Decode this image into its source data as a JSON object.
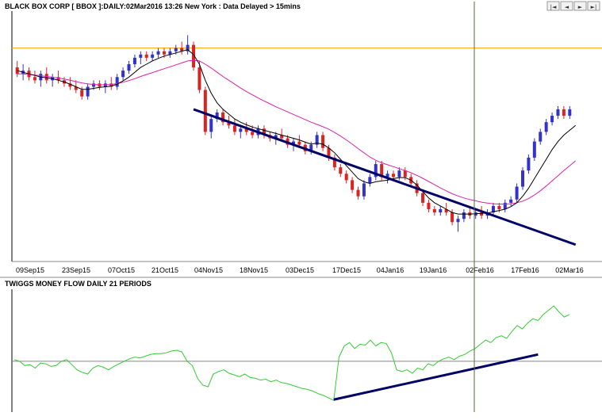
{
  "chart_data": [
    {
      "type": "candlestick",
      "title": "BLACK BOX CORP [ BBOX ]:DAILY:02Mar2016 13:26 New York : Data Delayed > 15mins",
      "x_tick_labels": [
        "09Sep15",
        "23Sep15",
        "07Oct15",
        "21Oct15",
        "04Nov15",
        "18Nov15",
        "03Dec15",
        "17Dec15",
        "04Jan16",
        "19Jan16",
        "02Feb16",
        "17Feb16",
        "02Mar16"
      ],
      "candles": [
        {
          "o": 16.4,
          "h": 16.6,
          "l": 16.1,
          "c": 16.2
        },
        {
          "o": 16.2,
          "h": 16.5,
          "l": 16.0,
          "c": 16.3
        },
        {
          "o": 16.3,
          "h": 16.4,
          "l": 16.0,
          "c": 16.1
        },
        {
          "o": 16.1,
          "h": 16.3,
          "l": 15.9,
          "c": 16.0
        },
        {
          "o": 16.0,
          "h": 16.3,
          "l": 15.8,
          "c": 16.2
        },
        {
          "o": 16.2,
          "h": 16.4,
          "l": 15.9,
          "c": 16.0
        },
        {
          "o": 16.0,
          "h": 16.2,
          "l": 15.8,
          "c": 16.1
        },
        {
          "o": 16.1,
          "h": 16.3,
          "l": 15.9,
          "c": 16.0
        },
        {
          "o": 16.0,
          "h": 16.1,
          "l": 15.8,
          "c": 15.9
        },
        {
          "o": 15.9,
          "h": 16.1,
          "l": 15.7,
          "c": 15.8
        },
        {
          "o": 15.8,
          "h": 16.0,
          "l": 15.6,
          "c": 15.7
        },
        {
          "o": 15.7,
          "h": 15.8,
          "l": 15.4,
          "c": 15.5
        },
        {
          "o": 15.5,
          "h": 15.9,
          "l": 15.4,
          "c": 15.8
        },
        {
          "o": 15.8,
          "h": 16.0,
          "l": 15.7,
          "c": 15.9
        },
        {
          "o": 15.9,
          "h": 16.0,
          "l": 15.7,
          "c": 15.8
        },
        {
          "o": 15.8,
          "h": 16.0,
          "l": 15.6,
          "c": 15.9
        },
        {
          "o": 15.9,
          "h": 16.1,
          "l": 15.7,
          "c": 15.8
        },
        {
          "o": 15.8,
          "h": 16.2,
          "l": 15.7,
          "c": 16.1
        },
        {
          "o": 16.1,
          "h": 16.4,
          "l": 16.0,
          "c": 16.3
        },
        {
          "o": 16.3,
          "h": 16.6,
          "l": 16.2,
          "c": 16.5
        },
        {
          "o": 16.5,
          "h": 16.8,
          "l": 16.4,
          "c": 16.7
        },
        {
          "o": 16.7,
          "h": 16.9,
          "l": 16.5,
          "c": 16.8
        },
        {
          "o": 16.8,
          "h": 16.9,
          "l": 16.6,
          "c": 16.7
        },
        {
          "o": 16.7,
          "h": 16.9,
          "l": 16.6,
          "c": 16.8
        },
        {
          "o": 16.8,
          "h": 17.0,
          "l": 16.7,
          "c": 16.9
        },
        {
          "o": 16.9,
          "h": 17.0,
          "l": 16.7,
          "c": 16.8
        },
        {
          "o": 16.8,
          "h": 17.0,
          "l": 16.7,
          "c": 16.9
        },
        {
          "o": 16.9,
          "h": 17.1,
          "l": 16.8,
          "c": 17.0
        },
        {
          "o": 17.0,
          "h": 17.2,
          "l": 16.8,
          "c": 16.9
        },
        {
          "o": 16.9,
          "h": 17.4,
          "l": 16.8,
          "c": 17.1
        },
        {
          "o": 17.1,
          "h": 17.2,
          "l": 16.3,
          "c": 16.4
        },
        {
          "o": 16.4,
          "h": 16.6,
          "l": 15.6,
          "c": 15.7
        },
        {
          "o": 15.7,
          "h": 15.8,
          "l": 14.3,
          "c": 14.4
        },
        {
          "o": 14.4,
          "h": 14.9,
          "l": 14.2,
          "c": 14.8
        },
        {
          "o": 14.8,
          "h": 15.1,
          "l": 14.7,
          "c": 15.0
        },
        {
          "o": 15.0,
          "h": 15.1,
          "l": 14.6,
          "c": 14.7
        },
        {
          "o": 14.7,
          "h": 14.9,
          "l": 14.5,
          "c": 14.6
        },
        {
          "o": 14.6,
          "h": 14.8,
          "l": 14.3,
          "c": 14.4
        },
        {
          "o": 14.4,
          "h": 14.6,
          "l": 14.2,
          "c": 14.5
        },
        {
          "o": 14.5,
          "h": 14.7,
          "l": 14.3,
          "c": 14.4
        },
        {
          "o": 14.4,
          "h": 14.6,
          "l": 14.2,
          "c": 14.3
        },
        {
          "o": 14.3,
          "h": 14.6,
          "l": 14.2,
          "c": 14.5
        },
        {
          "o": 14.5,
          "h": 14.6,
          "l": 14.2,
          "c": 14.3
        },
        {
          "o": 14.3,
          "h": 14.4,
          "l": 14.1,
          "c": 14.2
        },
        {
          "o": 14.2,
          "h": 14.4,
          "l": 14.0,
          "c": 14.3
        },
        {
          "o": 14.3,
          "h": 14.5,
          "l": 14.1,
          "c": 14.2
        },
        {
          "o": 14.2,
          "h": 14.3,
          "l": 13.9,
          "c": 14.0
        },
        {
          "o": 14.0,
          "h": 14.2,
          "l": 13.8,
          "c": 14.1
        },
        {
          "o": 14.1,
          "h": 14.3,
          "l": 13.9,
          "c": 14.0
        },
        {
          "o": 14.0,
          "h": 14.1,
          "l": 13.7,
          "c": 13.8
        },
        {
          "o": 13.8,
          "h": 14.1,
          "l": 13.7,
          "c": 14.0
        },
        {
          "o": 14.0,
          "h": 14.4,
          "l": 13.9,
          "c": 14.3
        },
        {
          "o": 14.3,
          "h": 14.4,
          "l": 13.8,
          "c": 13.9
        },
        {
          "o": 13.9,
          "h": 14.0,
          "l": 13.5,
          "c": 13.6
        },
        {
          "o": 13.6,
          "h": 13.7,
          "l": 13.2,
          "c": 13.3
        },
        {
          "o": 13.3,
          "h": 13.4,
          "l": 13.0,
          "c": 13.1
        },
        {
          "o": 13.1,
          "h": 13.2,
          "l": 12.8,
          "c": 12.9
        },
        {
          "o": 12.9,
          "h": 13.0,
          "l": 12.5,
          "c": 12.6
        },
        {
          "o": 12.6,
          "h": 12.7,
          "l": 12.3,
          "c": 12.4
        },
        {
          "o": 12.4,
          "h": 12.9,
          "l": 12.3,
          "c": 12.8
        },
        {
          "o": 12.8,
          "h": 13.1,
          "l": 12.7,
          "c": 13.0
        },
        {
          "o": 13.0,
          "h": 13.5,
          "l": 12.9,
          "c": 13.4
        },
        {
          "o": 13.4,
          "h": 13.5,
          "l": 12.9,
          "c": 13.0
        },
        {
          "o": 13.0,
          "h": 13.2,
          "l": 12.8,
          "c": 13.1
        },
        {
          "o": 13.1,
          "h": 13.2,
          "l": 12.9,
          "c": 13.0
        },
        {
          "o": 13.0,
          "h": 13.3,
          "l": 12.9,
          "c": 13.2
        },
        {
          "o": 13.2,
          "h": 13.3,
          "l": 12.9,
          "c": 13.0
        },
        {
          "o": 13.0,
          "h": 13.1,
          "l": 12.7,
          "c": 12.8
        },
        {
          "o": 12.8,
          "h": 12.9,
          "l": 12.4,
          "c": 12.5
        },
        {
          "o": 12.5,
          "h": 12.6,
          "l": 12.1,
          "c": 12.2
        },
        {
          "o": 12.2,
          "h": 12.3,
          "l": 11.9,
          "c": 12.0
        },
        {
          "o": 12.0,
          "h": 12.1,
          "l": 11.8,
          "c": 11.9
        },
        {
          "o": 11.9,
          "h": 12.1,
          "l": 11.8,
          "c": 12.0
        },
        {
          "o": 12.0,
          "h": 12.2,
          "l": 11.8,
          "c": 11.9
        },
        {
          "o": 11.9,
          "h": 12.0,
          "l": 11.5,
          "c": 11.6
        },
        {
          "o": 11.6,
          "h": 11.8,
          "l": 11.3,
          "c": 11.7
        },
        {
          "o": 11.7,
          "h": 12.0,
          "l": 11.6,
          "c": 11.9
        },
        {
          "o": 11.9,
          "h": 12.1,
          "l": 11.7,
          "c": 11.8
        },
        {
          "o": 11.8,
          "h": 12.0,
          "l": 11.7,
          "c": 11.9
        },
        {
          "o": 11.9,
          "h": 12.1,
          "l": 11.7,
          "c": 11.8
        },
        {
          "o": 11.8,
          "h": 12.0,
          "l": 11.7,
          "c": 11.9
        },
        {
          "o": 11.9,
          "h": 12.2,
          "l": 11.8,
          "c": 12.1
        },
        {
          "o": 12.1,
          "h": 12.2,
          "l": 11.9,
          "c": 12.0
        },
        {
          "o": 12.0,
          "h": 12.3,
          "l": 11.9,
          "c": 12.2
        },
        {
          "o": 12.2,
          "h": 12.4,
          "l": 12.1,
          "c": 12.3
        },
        {
          "o": 12.3,
          "h": 12.8,
          "l": 12.2,
          "c": 12.7
        },
        {
          "o": 12.7,
          "h": 13.3,
          "l": 12.6,
          "c": 13.2
        },
        {
          "o": 13.2,
          "h": 13.7,
          "l": 13.1,
          "c": 13.6
        },
        {
          "o": 13.6,
          "h": 14.2,
          "l": 13.5,
          "c": 14.1
        },
        {
          "o": 14.1,
          "h": 14.5,
          "l": 14.0,
          "c": 14.4
        },
        {
          "o": 14.4,
          "h": 14.8,
          "l": 14.3,
          "c": 14.7
        },
        {
          "o": 14.7,
          "h": 15.0,
          "l": 14.6,
          "c": 14.9
        },
        {
          "o": 14.9,
          "h": 15.2,
          "l": 14.8,
          "c": 15.1
        },
        {
          "o": 15.1,
          "h": 15.2,
          "l": 14.8,
          "c": 14.9
        },
        {
          "o": 14.9,
          "h": 15.2,
          "l": 14.8,
          "c": 15.1
        }
      ],
      "moving_average_short": [
        16.3,
        16.25,
        16.2,
        16.15,
        16.1,
        16.08,
        16.05,
        16.0,
        15.95,
        15.88,
        15.8,
        15.72,
        15.72,
        15.75,
        15.78,
        15.8,
        15.82,
        15.88,
        15.98,
        16.1,
        16.25,
        16.4,
        16.5,
        16.6,
        16.68,
        16.75,
        16.8,
        16.85,
        16.9,
        16.95,
        16.8,
        16.5,
        16.0,
        15.6,
        15.3,
        15.1,
        14.95,
        14.8,
        14.7,
        14.62,
        14.55,
        14.5,
        14.45,
        14.4,
        14.35,
        14.3,
        14.25,
        14.2,
        14.15,
        14.08,
        14.02,
        14.05,
        14.02,
        13.9,
        13.75,
        13.55,
        13.35,
        13.15,
        12.95,
        12.85,
        12.8,
        12.85,
        12.88,
        12.9,
        12.95,
        12.98,
        12.98,
        12.9,
        12.75,
        12.55,
        12.35,
        12.2,
        12.1,
        12.0,
        11.9,
        11.85,
        11.85,
        11.85,
        11.86,
        11.87,
        11.88,
        11.92,
        11.96,
        12.0,
        12.08,
        12.2,
        12.4,
        12.65,
        12.95,
        13.25,
        13.55,
        13.85,
        14.1,
        14.3,
        14.45,
        14.6
      ],
      "moving_average_long": [
        16.2,
        16.2,
        16.18,
        16.16,
        16.14,
        16.12,
        16.1,
        16.07,
        16.04,
        16.0,
        15.96,
        15.92,
        15.89,
        15.87,
        15.86,
        15.86,
        15.87,
        15.9,
        15.94,
        15.99,
        16.05,
        16.12,
        16.18,
        16.24,
        16.3,
        16.36,
        16.42,
        16.48,
        16.54,
        16.6,
        16.62,
        16.6,
        16.5,
        16.38,
        16.25,
        16.12,
        16.0,
        15.88,
        15.76,
        15.65,
        15.55,
        15.45,
        15.36,
        15.27,
        15.18,
        15.1,
        15.02,
        14.94,
        14.86,
        14.78,
        14.7,
        14.63,
        14.56,
        14.48,
        14.38,
        14.27,
        14.15,
        14.02,
        13.88,
        13.75,
        13.62,
        13.52,
        13.44,
        13.38,
        13.32,
        13.26,
        13.2,
        13.13,
        13.05,
        12.96,
        12.86,
        12.76,
        12.66,
        12.57,
        12.48,
        12.41,
        12.35,
        12.3,
        12.26,
        12.22,
        12.19,
        12.17,
        12.16,
        12.16,
        12.17,
        12.2,
        12.25,
        12.33,
        12.44,
        12.57,
        12.72,
        12.88,
        13.04,
        13.2,
        13.35,
        13.5
      ],
      "horizontal_line_value": 17.0,
      "trendline": {
        "from_index": 30,
        "from_value": 15.1,
        "to_index": 95,
        "to_value": 10.9
      },
      "vertical_marker_x_label": "02Feb16",
      "colors": {
        "up": "#3333cc",
        "down": "#dd2222",
        "ma_short": "#000000",
        "ma_long": "#dd22aa",
        "horizontal_line": "#ffa500",
        "trendline": "#000066",
        "marker": "#556b2f"
      },
      "ylim": [
        10.5,
        18.0
      ]
    },
    {
      "type": "line",
      "title": "TWIGGS MONEY FLOW DAILY 21 PERIODS",
      "values": [
        0.02,
        0.0,
        -0.05,
        -0.04,
        -0.08,
        -0.02,
        -0.03,
        -0.06,
        -0.05,
        0.0,
        0.02,
        -0.04,
        -0.1,
        -0.13,
        -0.15,
        -0.08,
        -0.05,
        -0.07,
        -0.1,
        -0.06,
        -0.03,
        0.0,
        0.03,
        0.05,
        0.04,
        0.06,
        0.08,
        0.09,
        0.09,
        0.1,
        0.12,
        0.13,
        0.11,
        0.0,
        -0.05,
        -0.2,
        -0.28,
        -0.3,
        -0.15,
        -0.12,
        -0.1,
        -0.14,
        -0.16,
        -0.18,
        -0.15,
        -0.19,
        -0.2,
        -0.22,
        -0.21,
        -0.24,
        -0.22,
        -0.25,
        -0.26,
        -0.28,
        -0.3,
        -0.32,
        -0.33,
        -0.35,
        -0.38,
        -0.4,
        -0.43,
        -0.46,
        0.05,
        0.18,
        0.22,
        0.15,
        0.2,
        0.19,
        0.25,
        0.18,
        0.22,
        0.21,
        0.1,
        -0.1,
        -0.12,
        -0.1,
        -0.14,
        -0.08,
        -0.1,
        -0.03,
        -0.05,
        0.0,
        0.03,
        0.05,
        0.02,
        0.06,
        0.08,
        0.12,
        0.15,
        0.2,
        0.25,
        0.22,
        0.28,
        0.3,
        0.27,
        0.35,
        0.42,
        0.38,
        0.45,
        0.5,
        0.48,
        0.55,
        0.6,
        0.65,
        0.58,
        0.52,
        0.55
      ],
      "zero_line": 0,
      "trendline": {
        "from_index": 61,
        "from_value": -0.45,
        "to_index": 100,
        "to_value": 0.08
      },
      "vertical_marker_x_label": "02Feb16",
      "colors": {
        "line": "#33cc33",
        "zero_line": "#888888",
        "trendline": "#000066",
        "marker": "#556b2f"
      },
      "ylim": [
        -0.55,
        0.8
      ]
    }
  ],
  "nav_buttons": [
    {
      "name": "first-button",
      "glyph": "|◄"
    },
    {
      "name": "prev-button",
      "glyph": "◄"
    },
    {
      "name": "next-button",
      "glyph": "►"
    },
    {
      "name": "last-button",
      "glyph": "►|"
    }
  ]
}
